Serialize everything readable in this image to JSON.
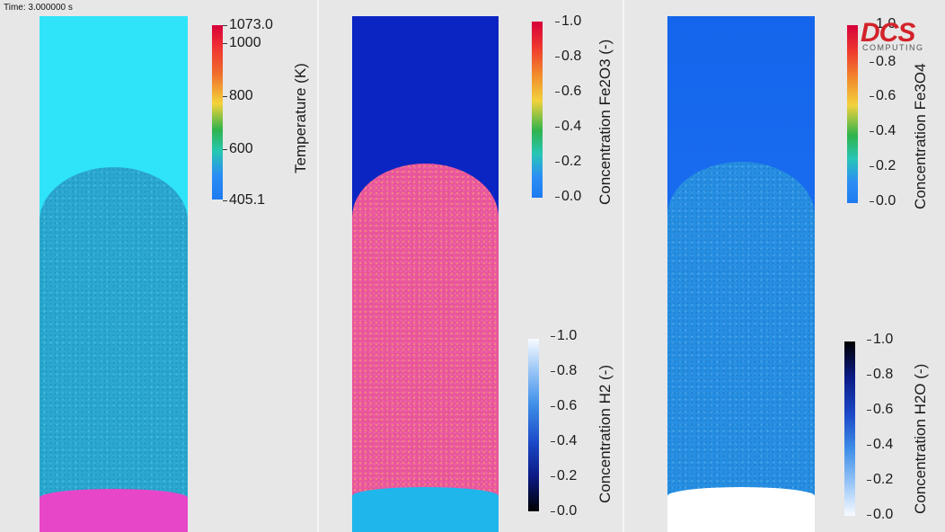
{
  "overlay": {
    "time_text": "Time: 3.000000 s"
  },
  "logo": {
    "main": "DCS",
    "sub": "COMPUTING"
  },
  "colors": {
    "background": "#e7e7e7",
    "cyan_gas": "#2fe4f8",
    "blue_gas": "#0b25c2",
    "fe3o4_gas": "#1464ee",
    "magenta_bottom": "#e846c8",
    "bed_cyan": "#2aa8cf",
    "bed_pink": "#e9559a",
    "bed_blue": "#268fe2",
    "white_bottom": "#ffffff"
  },
  "panels": [
    {
      "field": "Temperature",
      "colorbar": {
        "title": "Temperature (K)",
        "ticks": [
          "1073.0",
          "1000",
          "800",
          "600",
          "405.1"
        ],
        "range": [
          405.1,
          1073.0
        ],
        "colormap": "jet-rainbow"
      }
    },
    {
      "field": "Fe2O3 / H2",
      "colorbar_top": {
        "title": "Concentration Fe2O3 (-)",
        "ticks": [
          "1.0",
          "0.8",
          "0.6",
          "0.4",
          "0.2",
          "0.0"
        ],
        "range": [
          0,
          1
        ],
        "colormap": "jet-rainbow"
      },
      "colorbar_bottom": {
        "title": "Concentration H2 (-)",
        "ticks": [
          "1.0",
          "0.8",
          "0.6",
          "0.4",
          "0.2",
          "0.0"
        ],
        "range": [
          0,
          1
        ],
        "colormap": "black-blue-white"
      }
    },
    {
      "field": "Fe3O4 / H2O",
      "colorbar_top": {
        "title": "Concentration Fe3O4",
        "ticks": [
          "1.0",
          "0.8",
          "0.6",
          "0.4",
          "0.2",
          "0.0"
        ],
        "range": [
          0,
          1
        ],
        "colormap": "jet-rainbow"
      },
      "colorbar_bottom": {
        "title": "Concentration H2O (-)",
        "ticks": [
          "1.0",
          "0.8",
          "0.6",
          "0.4",
          "0.2",
          "0.0"
        ],
        "range": [
          0,
          1
        ],
        "colormap": "white-blue-black"
      }
    }
  ]
}
